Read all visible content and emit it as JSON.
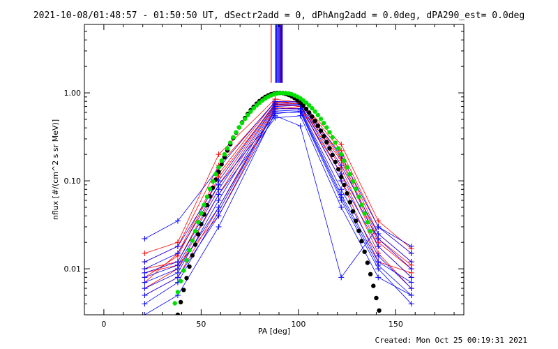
{
  "chart_data": {
    "type": "line",
    "title": "2021-10-08/01:48:57 - 01:50:50 UT, dSectr2add = 0, dPhAng2add = 0.0deg, dPA290_est=  0.0deg",
    "xlabel": "PA [deg]",
    "ylabel": "nflux [#/(cm^2 s sr MeV)]",
    "xlim": [
      -10,
      185
    ],
    "ylim": [
      0.003,
      6
    ],
    "yscale": "log",
    "xticks": [
      0,
      50,
      100,
      150
    ],
    "yticks": [
      0.01,
      0.1,
      1.0
    ],
    "ytick_labels": [
      "0.01",
      "0.10",
      "1.00"
    ],
    "grid": false,
    "colors": {
      "red": "#ff0000",
      "blue": "#0000ff",
      "black": "#000000",
      "green": "#00e000"
    },
    "measured_pa": [
      21,
      38,
      59,
      88,
      101,
      122,
      141,
      158
    ],
    "series": [
      {
        "color": "red",
        "values": [
          0.015,
          0.02,
          0.2,
          0.85,
          0.78,
          0.26,
          0.035,
          0.017
        ]
      },
      {
        "color": "red",
        "values": [
          0.007,
          0.015,
          0.12,
          0.8,
          0.75,
          0.2,
          0.025,
          0.012
        ]
      },
      {
        "color": "red",
        "values": [
          0.01,
          0.012,
          0.09,
          0.75,
          0.7,
          0.17,
          0.02,
          0.01
        ]
      },
      {
        "color": "red",
        "values": [
          0.006,
          0.01,
          0.07,
          0.72,
          0.72,
          0.14,
          0.018,
          0.008
        ]
      },
      {
        "color": "red",
        "values": [
          0.012,
          0.018,
          0.15,
          0.78,
          0.8,
          0.22,
          0.03,
          0.015
        ]
      },
      {
        "color": "red",
        "values": [
          0.005,
          0.008,
          0.05,
          0.68,
          0.66,
          0.12,
          0.015,
          0.006
        ]
      },
      {
        "color": "red",
        "values": [
          0.009,
          0.011,
          0.04,
          0.65,
          0.7,
          0.1,
          0.012,
          0.009
        ]
      },
      {
        "color": "red",
        "values": [
          0.008,
          0.014,
          0.11,
          0.74,
          0.76,
          0.18,
          0.022,
          0.011
        ]
      },
      {
        "color": "blue",
        "values": [
          0.022,
          0.035,
          0.14,
          0.8,
          0.79,
          0.19,
          0.03,
          0.015
        ]
      },
      {
        "color": "blue",
        "values": [
          0.009,
          0.012,
          0.08,
          0.73,
          0.74,
          0.12,
          0.022,
          0.01
        ]
      },
      {
        "color": "blue",
        "values": [
          0.006,
          0.009,
          0.06,
          0.7,
          0.72,
          0.1,
          0.018,
          0.008
        ]
      },
      {
        "color": "blue",
        "values": [
          0.004,
          0.007,
          0.045,
          0.66,
          0.66,
          0.08,
          0.014,
          0.006
        ]
      },
      {
        "color": "blue",
        "values": [
          0.012,
          0.018,
          0.1,
          0.76,
          0.77,
          0.15,
          0.025,
          0.012
        ]
      },
      {
        "color": "blue",
        "values": [
          0.003,
          0.005,
          0.03,
          0.6,
          0.6,
          0.06,
          0.01,
          0.004
        ]
      },
      {
        "color": "blue",
        "values": [
          0.01,
          0.015,
          0.09,
          0.55,
          0.42,
          0.008,
          0.03,
          0.018
        ]
      },
      {
        "color": "blue",
        "values": [
          0.008,
          0.011,
          0.07,
          0.52,
          0.55,
          0.05,
          0.008,
          0.005
        ]
      },
      {
        "color": "blue",
        "values": [
          0.007,
          0.01,
          0.05,
          0.62,
          0.64,
          0.07,
          0.012,
          0.007
        ]
      },
      {
        "color": "blue",
        "values": [
          0.005,
          0.008,
          0.04,
          0.58,
          0.62,
          0.065,
          0.011,
          0.005
        ]
      }
    ],
    "fit_black": {
      "color": "black",
      "pa_range": [
        38,
        142
      ],
      "center": 90,
      "peak": 1.0
    },
    "fit_green": {
      "color": "green",
      "pa_range": [
        35,
        137
      ],
      "center": 92,
      "peak": 1.0
    },
    "vertical_markers": [
      {
        "color": "red",
        "pa": 86
      },
      {
        "color": "red",
        "pa": 91
      },
      {
        "color": "blue",
        "pa": 88.5
      },
      {
        "color": "blue",
        "pa": 89.5
      },
      {
        "color": "blue",
        "pa": 90.5
      },
      {
        "color": "blue",
        "pa": 91.5
      }
    ]
  },
  "footer": "Created: Mon Oct 25 00:19:31 2021"
}
